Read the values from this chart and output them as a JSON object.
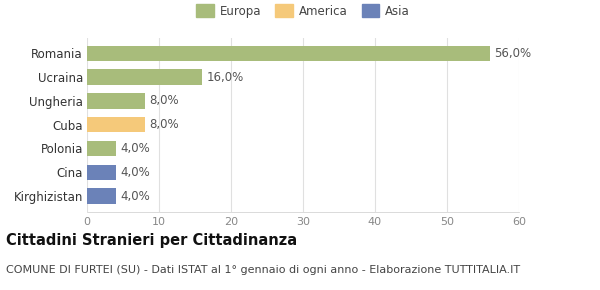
{
  "categories": [
    "Kirghizistan",
    "Cina",
    "Polonia",
    "Cuba",
    "Ungheria",
    "Ucraina",
    "Romania"
  ],
  "values": [
    4.0,
    4.0,
    4.0,
    8.0,
    8.0,
    16.0,
    56.0
  ],
  "colors": [
    "#6b82b8",
    "#6b82b8",
    "#a8bc7b",
    "#f5c97a",
    "#a8bc7b",
    "#a8bc7b",
    "#a8bc7b"
  ],
  "labels": [
    "4,0%",
    "4,0%",
    "4,0%",
    "8,0%",
    "8,0%",
    "16,0%",
    "56,0%"
  ],
  "xlim": [
    0,
    60
  ],
  "xticks": [
    0,
    10,
    20,
    30,
    40,
    50,
    60
  ],
  "legend_items": [
    {
      "label": "Europa",
      "color": "#a8bc7b"
    },
    {
      "label": "America",
      "color": "#f5c97a"
    },
    {
      "label": "Asia",
      "color": "#6b82b8"
    }
  ],
  "title": "Cittadini Stranieri per Cittadinanza",
  "subtitle": "COMUNE DI FURTEI (SU) - Dati ISTAT al 1° gennaio di ogni anno - Elaborazione TUTTITALIA.IT",
  "background_color": "#ffffff",
  "grid_color": "#e0e0e0",
  "bar_height": 0.65,
  "label_fontsize": 8.5,
  "tick_fontsize": 8,
  "ylabel_fontsize": 8.5,
  "title_fontsize": 10.5,
  "subtitle_fontsize": 8
}
